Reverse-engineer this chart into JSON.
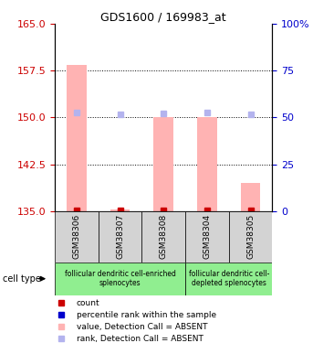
{
  "title": "GDS1600 / 169983_at",
  "samples": [
    "GSM38306",
    "GSM38307",
    "GSM38308",
    "GSM38304",
    "GSM38305"
  ],
  "bar_values": [
    158.5,
    135.3,
    150.0,
    150.0,
    139.5
  ],
  "bar_base": 135.0,
  "rank_values": [
    52.5,
    51.5,
    52.0,
    52.5,
    51.5
  ],
  "left_ylim": [
    135,
    165
  ],
  "right_ylim": [
    0,
    100
  ],
  "left_yticks": [
    135,
    142.5,
    150,
    157.5,
    165
  ],
  "right_yticks": [
    0,
    25,
    50,
    75,
    100
  ],
  "bar_color": "#ffb3b3",
  "rank_color": "#b3b3ee",
  "count_color": "#cc0000",
  "count_marker_values": [
    135.15,
    135.15,
    135.15,
    135.15,
    135.15
  ],
  "groups": [
    {
      "label": "follicular dendritic cell-enriched\nsplenocytes",
      "samples": [
        0,
        1,
        2
      ],
      "color": "#90ee90"
    },
    {
      "label": "follicular dendritic cell-\ndepleted splenocytes",
      "samples": [
        3,
        4
      ],
      "color": "#90ee90"
    }
  ],
  "legend_labels": [
    "count",
    "percentile rank within the sample",
    "value, Detection Call = ABSENT",
    "rank, Detection Call = ABSENT"
  ],
  "legend_colors": [
    "#cc0000",
    "#0000cc",
    "#ffb3b3",
    "#b3b3ee"
  ],
  "cell_type_label": "cell type",
  "left_axis_color": "#cc0000",
  "right_axis_color": "#0000cc",
  "sample_box_color": "#d3d3d3",
  "group1_samples": [
    0,
    1,
    2
  ],
  "group2_samples": [
    3,
    4
  ]
}
